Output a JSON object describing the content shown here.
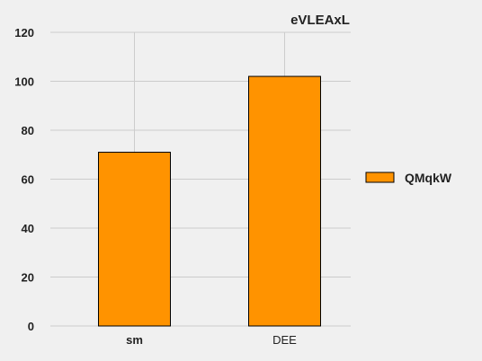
{
  "chart_data": {
    "type": "bar",
    "title": "eVLEAxL",
    "xlabel": "",
    "ylabel": "",
    "categories": [
      "sm",
      "DEE"
    ],
    "series": [
      {
        "name": "QMqkW",
        "values": [
          71,
          102
        ]
      }
    ],
    "ylim": [
      0,
      120
    ],
    "yticks": [
      0,
      20,
      40,
      60,
      80,
      100,
      120
    ],
    "grid": true,
    "legend_position": "right",
    "colors": {
      "bar_fill": "#ff9300",
      "bar_stroke": "#000000",
      "grid": "#cccccc",
      "background": "#f0f0f0",
      "text": "#222222"
    }
  }
}
